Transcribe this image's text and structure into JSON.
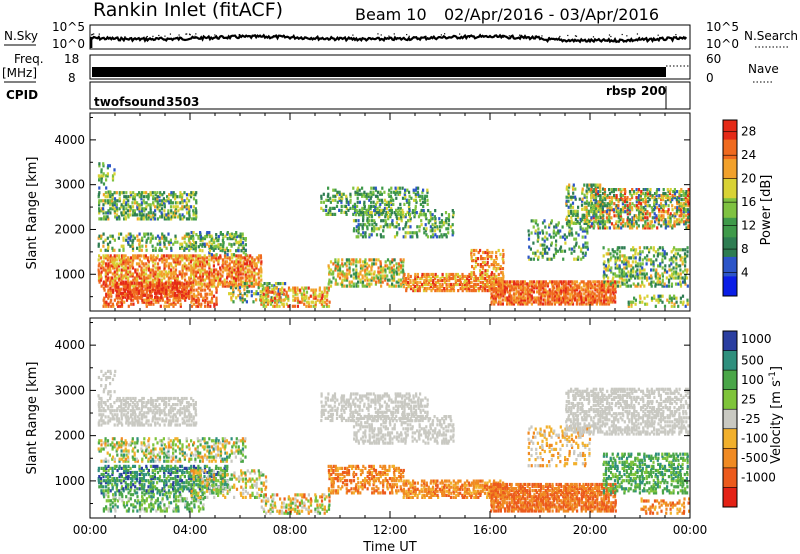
{
  "header": {
    "station": "Rankin Inlet (fitACF)",
    "beam": "Beam 10",
    "date_range": "02/Apr/2016 - 03/Apr/2016"
  },
  "noise_panel": {
    "left_label": "N.Sky",
    "right_label": "N.Search",
    "left_ticks": [
      "10^5",
      "10^0"
    ],
    "right_ticks": [
      "10^5",
      "10^0"
    ]
  },
  "freq_panel": {
    "left_label": "Freq.",
    "left_unit": "[MHz]",
    "right_label": "Nave",
    "left_ticks": [
      "18",
      "8"
    ],
    "right_ticks": [
      "60",
      "0"
    ]
  },
  "cpid_panel": {
    "label": "CPID",
    "programs": [
      {
        "name": "twofsound",
        "id": "3503",
        "start_hour": 0
      },
      {
        "name": "rbsp",
        "id": "200",
        "start_hour": 22.9
      }
    ]
  },
  "chart_data": [
    {
      "type": "heatmap",
      "name": "power",
      "xlabel": "",
      "ylabel": "Slant Range [km]",
      "xlim_hours": [
        0,
        24
      ],
      "ylim_km": [
        180,
        4600
      ],
      "y_ticks": [
        1000,
        2000,
        3000,
        4000
      ],
      "colorbar": {
        "label": "Power [dB]",
        "ticks": [
          4,
          8,
          12,
          16,
          20,
          24,
          28
        ],
        "range": [
          0,
          30
        ],
        "colors": [
          "#0a1ee6",
          "#2c55c8",
          "#2e7d52",
          "#3f9a4a",
          "#7fc241",
          "#d8d235",
          "#f2a12b",
          "#ef6a1f",
          "#e52a17"
        ]
      }
    },
    {
      "type": "heatmap",
      "name": "velocity",
      "xlabel": "Time UT",
      "ylabel": "Slant Range [km]",
      "xlim_hours": [
        0,
        24
      ],
      "ylim_km": [
        180,
        4600
      ],
      "y_ticks": [
        1000,
        2000,
        3000,
        4000
      ],
      "x_ticks": [
        "00:00",
        "04:00",
        "08:00",
        "12:00",
        "16:00",
        "20:00",
        "00:00"
      ],
      "colorbar": {
        "label": "Velocity [m s^-1]",
        "ticks": [
          "1000",
          "500",
          "100",
          "25",
          "-25",
          "-100",
          "-500",
          "-1000"
        ],
        "colors": [
          "#2a3ea0",
          "#2f8f7d",
          "#4aa648",
          "#7fc43a",
          "#c9c9c2",
          "#f2b02c",
          "#f08a22",
          "#ec5a1c",
          "#e42216"
        ]
      }
    }
  ]
}
